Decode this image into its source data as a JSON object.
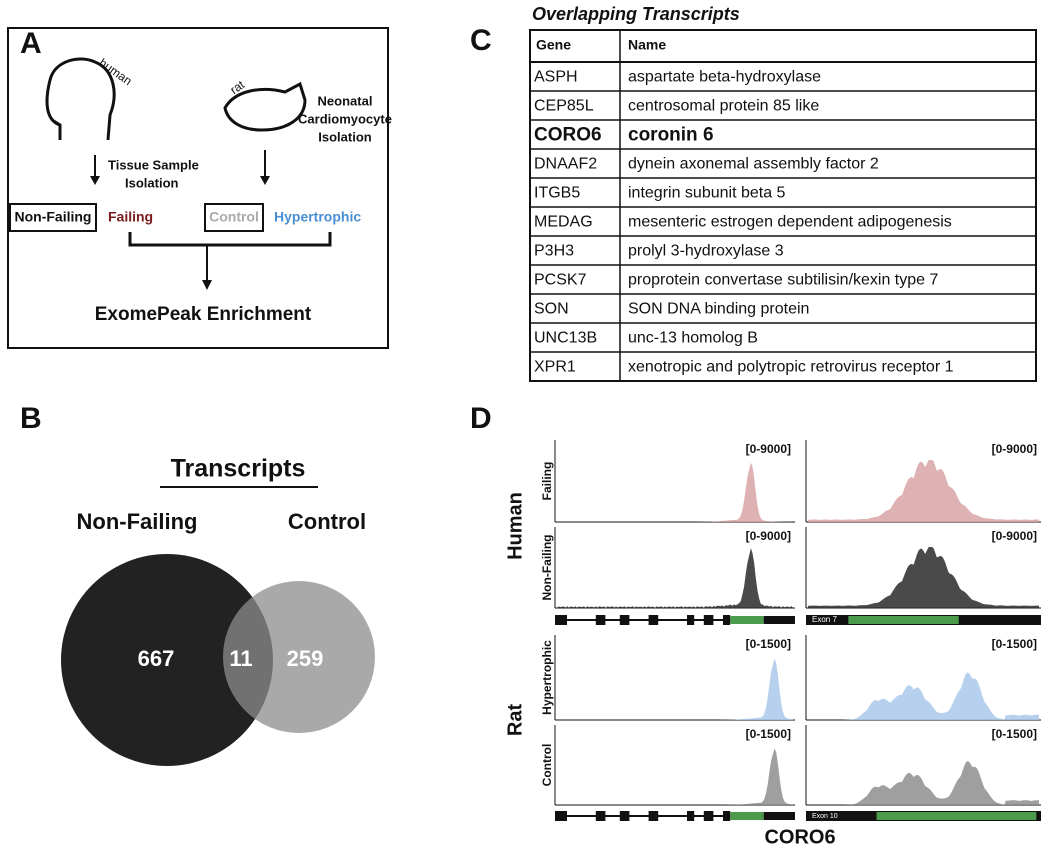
{
  "panel_a": {
    "letter": "A",
    "human_label": "human",
    "rat_label": "rat",
    "human_step": [
      "Tissue Sample",
      "Isolation"
    ],
    "rat_step": [
      "Neonatal",
      "Cardiomyocyte",
      "Isolation"
    ],
    "groups": [
      "Non-Failing",
      "Failing",
      "Control",
      "Hypertrophic"
    ],
    "result": "ExomePeak Enrichment"
  },
  "panel_b": {
    "letter": "B",
    "title": "Transcripts",
    "set_labels": [
      "Non-Failing",
      "Control"
    ],
    "counts": [
      "667",
      "11",
      "259"
    ]
  },
  "panel_c": {
    "letter": "C",
    "title": "Overlapping Transcripts",
    "header": [
      "Gene",
      "Name"
    ],
    "rows": [
      [
        "ASPH",
        "aspartate beta-hydroxylase"
      ],
      [
        "CEP85L",
        "centrosomal protein 85 like"
      ],
      [
        "CORO6",
        "coronin 6"
      ],
      [
        "DNAAF2",
        "dynein axonemal assembly factor 2"
      ],
      [
        "ITGB5",
        "integrin subunit beta 5"
      ],
      [
        "MEDAG",
        "mesenteric estrogen dependent adipogenesis"
      ],
      [
        "P3H3",
        "prolyl 3-hydroxylase 3"
      ],
      [
        "PCSK7",
        "proprotein convertase subtilisin/kexin type 7"
      ],
      [
        "SON",
        "SON DNA binding protein"
      ],
      [
        "UNC13B",
        "unc-13 homolog B"
      ],
      [
        "XPR1",
        "xenotropic and polytropic retrovirus receptor 1"
      ]
    ]
  },
  "panel_d": {
    "letter": "D",
    "species": [
      "Human",
      "Rat"
    ],
    "tracks": [
      "Failing",
      "Non-Failing",
      "Hypertrophic",
      "Control"
    ],
    "ranges": [
      "[0-9000]",
      "[0-1500]"
    ],
    "exons": [
      "Exon 7",
      "Exon 10"
    ],
    "gene": "CORO6"
  }
}
